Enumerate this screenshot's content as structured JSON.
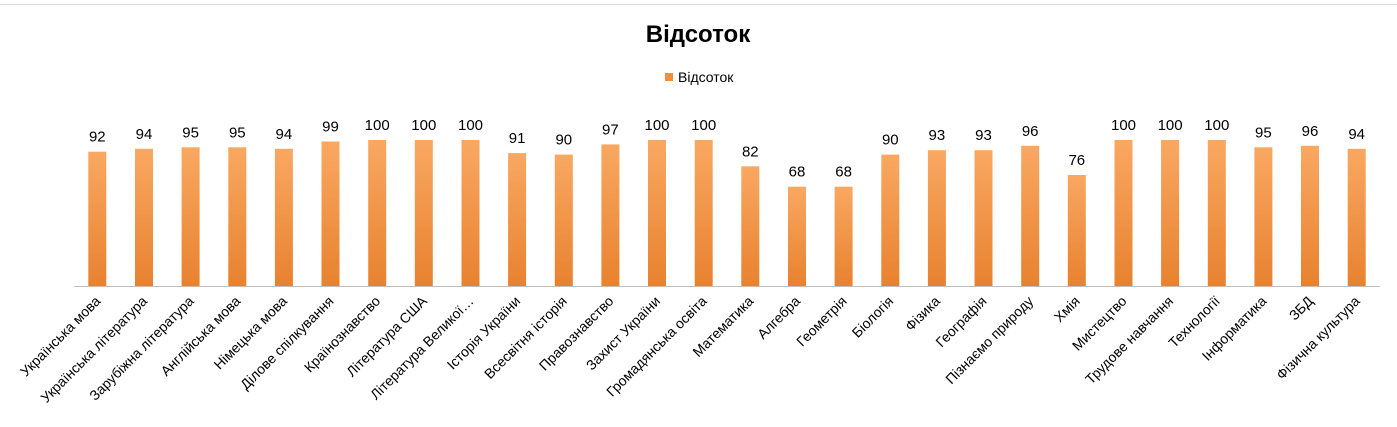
{
  "chart_data": {
    "type": "bar",
    "title": "Відсоток",
    "legend": {
      "position": "top",
      "entries": [
        "Відсоток"
      ]
    },
    "categories": [
      "Українська мова",
      "Українська література",
      "Зарубіжна література",
      "Англійська мова",
      "Німецька мова",
      "Ділове спілкування",
      "Країнознавство",
      "Література США",
      "Література Великої…",
      "Історія України",
      "Всесвітня історія",
      "Правознавство",
      "Захист України",
      "Громадянська освіта",
      "Математика",
      "Алгебра",
      "Геометрія",
      "Біологія",
      "Фізика",
      "Географія",
      "Пізнаємо природу",
      "Хмія",
      "Мистецтво",
      "Трудове навчання",
      "Технології",
      "Інформатика",
      "ЗБД",
      "Фізична культура"
    ],
    "series": [
      {
        "name": "Відсоток",
        "values": [
          92,
          94,
          95,
          95,
          94,
          99,
          100,
          100,
          100,
          91,
          90,
          97,
          100,
          100,
          82,
          68,
          68,
          90,
          93,
          93,
          96,
          76,
          100,
          100,
          100,
          95,
          96,
          94
        ]
      }
    ],
    "ylim": [
      0,
      100
    ],
    "xlabel": "",
    "ylabel": "",
    "grid": false,
    "data_labels": true,
    "colors": {
      "bar_top": "#f9a862",
      "bar_bottom": "#e8822f",
      "axis": "#bfbfbf",
      "text": "#000000"
    }
  }
}
